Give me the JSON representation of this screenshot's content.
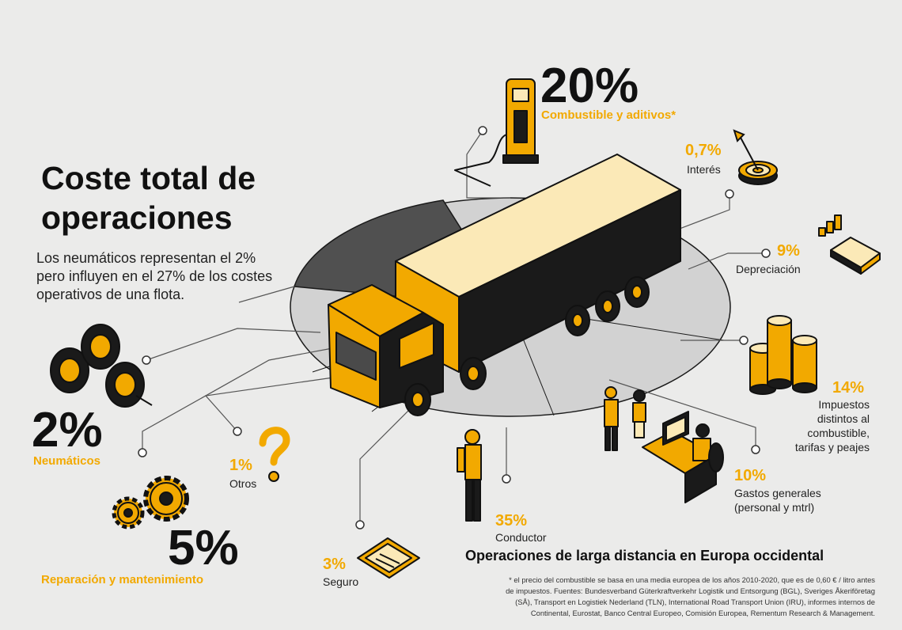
{
  "title_line1": "Coste total de",
  "title_line2": "operaciones",
  "intro": "Los neumáticos representan el 2% pero influyen en el 27% de los costes operativos de una flota.",
  "items": {
    "combustible": {
      "pct": "20%",
      "label": "Combustible y aditivos*"
    },
    "interes": {
      "pct": "0,7%",
      "label": "Interés"
    },
    "depreciacion": {
      "pct": "9%",
      "label": "Depreciación"
    },
    "impuestos": {
      "pct": "14%",
      "label_lines": [
        "Impuestos",
        "distintos al",
        "combustible,",
        "tarifas y peajes"
      ]
    },
    "gastos": {
      "pct": "10%",
      "label_lines": [
        "Gastos generales",
        "(personal y mtrl)"
      ]
    },
    "conductor": {
      "pct": "35%",
      "label": "Conductor"
    },
    "seguro": {
      "pct": "3%",
      "label": "Seguro"
    },
    "otros": {
      "pct": "1%",
      "label": "Otros"
    },
    "neumaticos": {
      "pct": "2%",
      "label": "Neumáticos"
    },
    "reparacion": {
      "pct": "5%",
      "label": "Reparación y mantenimiento"
    }
  },
  "subtitle": "Operaciones de larga distancia en Europa occidental",
  "footnote_lines": [
    "* el precio del combustible se basa en una media europea de los años 2010-2020, que es de 0,60 € / litro antes",
    "de impuestos. Fuentes: Bundesverband Güterkraftverkehr Logistik und Entsorgung (BGL), Sveriges Åkeriföretag",
    "(SÅ), Transport en Logistiek Nederland (TLN), International Road Transport Union (IRU), informes internos de",
    "Continental, Eurostat, Banco Central Europeo, Comisión Europea, Rementum Research & Management."
  ],
  "colors": {
    "accent": "#f2a900",
    "dark": "#1a1a1a",
    "background": "#ebebea",
    "pie_dark": "#505050",
    "pie_light": "#d2d2d2"
  },
  "icons": [
    "fuel-pump-icon",
    "target-icon",
    "calculator-icon",
    "coins-icon",
    "office-worker-icon",
    "driver-icon",
    "insurance-document-icon",
    "question-mark-icon",
    "tires-icon",
    "gears-icon",
    "truck-icon"
  ]
}
